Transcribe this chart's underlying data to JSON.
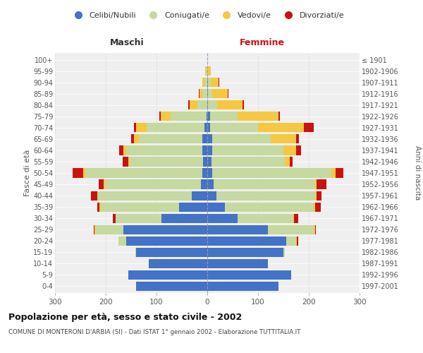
{
  "age_groups": [
    "0-4",
    "5-9",
    "10-14",
    "15-19",
    "20-24",
    "25-29",
    "30-34",
    "35-39",
    "40-44",
    "45-49",
    "50-54",
    "55-59",
    "60-64",
    "65-69",
    "70-74",
    "75-79",
    "80-84",
    "85-89",
    "90-94",
    "95-99",
    "100+"
  ],
  "birth_years": [
    "1997-2001",
    "1992-1996",
    "1987-1991",
    "1982-1986",
    "1977-1981",
    "1972-1976",
    "1967-1971",
    "1962-1966",
    "1957-1961",
    "1952-1956",
    "1947-1951",
    "1942-1946",
    "1937-1941",
    "1932-1936",
    "1927-1931",
    "1922-1926",
    "1917-1921",
    "1912-1916",
    "1907-1911",
    "1902-1906",
    "≤ 1901"
  ],
  "male": {
    "celibi": [
      140,
      155,
      115,
      140,
      160,
      165,
      90,
      55,
      30,
      12,
      10,
      8,
      10,
      10,
      5,
      2,
      0,
      0,
      0,
      0,
      0
    ],
    "coniugati": [
      0,
      0,
      0,
      2,
      15,
      55,
      90,
      155,
      185,
      190,
      230,
      145,
      150,
      125,
      115,
      70,
      20,
      10,
      5,
      2,
      0
    ],
    "vedovi": [
      0,
      0,
      0,
      0,
      0,
      2,
      1,
      2,
      2,
      2,
      5,
      3,
      5,
      10,
      20,
      20,
      15,
      5,
      5,
      2,
      0
    ],
    "divorziati": [
      0,
      0,
      0,
      0,
      0,
      2,
      5,
      5,
      12,
      10,
      20,
      10,
      8,
      5,
      5,
      2,
      2,
      2,
      0,
      0,
      0
    ]
  },
  "female": {
    "nubili": [
      140,
      165,
      120,
      150,
      155,
      120,
      60,
      35,
      18,
      12,
      10,
      8,
      10,
      10,
      5,
      5,
      2,
      2,
      2,
      0,
      0
    ],
    "coniugate": [
      0,
      0,
      0,
      3,
      20,
      90,
      110,
      175,
      195,
      200,
      235,
      145,
      140,
      115,
      95,
      55,
      18,
      8,
      5,
      2,
      0
    ],
    "vedove": [
      0,
      0,
      0,
      0,
      2,
      2,
      1,
      2,
      2,
      3,
      8,
      10,
      25,
      50,
      90,
      80,
      50,
      30,
      15,
      5,
      0
    ],
    "divorziate": [
      0,
      0,
      0,
      0,
      2,
      2,
      8,
      12,
      10,
      20,
      15,
      5,
      10,
      5,
      20,
      3,
      2,
      2,
      2,
      0,
      0
    ]
  },
  "colors": {
    "celibi": "#4472c4",
    "coniugati": "#c5d9a0",
    "vedovi": "#f5c842",
    "divorziati": "#cc1111"
  },
  "title": "Popolazione per età, sesso e stato civile - 2002",
  "subtitle": "COMUNE DI MONTERONI D'ARBIA (SI) - Dati ISTAT 1° gennaio 2002 - Elaborazione TUTTITALIA.IT",
  "xlabel_left": "Maschi",
  "xlabel_right": "Femmine",
  "ylabel_left": "Fasce di età",
  "ylabel_right": "Anni di nascita",
  "xlim": 300,
  "legend_labels": [
    "Celibi/Nubili",
    "Coniugati/e",
    "Vedovi/e",
    "Divorziati/e"
  ],
  "background_color": "#ffffff",
  "plot_background": "#efefef"
}
